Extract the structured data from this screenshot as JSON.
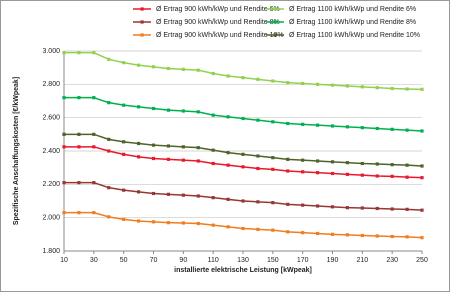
{
  "chart_data": {
    "type": "line",
    "x_label": "installierte elektrische Leistung [kWpeak]",
    "y_label": "Spezifische Anschaffungskosten [€/kWpeak]",
    "x": [
      10,
      20,
      30,
      40,
      50,
      60,
      70,
      80,
      90,
      100,
      110,
      120,
      130,
      140,
      150,
      160,
      170,
      180,
      190,
      200,
      210,
      220,
      230,
      240,
      250
    ],
    "xlim": [
      10,
      250
    ],
    "xticks": [
      10,
      30,
      50,
      70,
      90,
      110,
      130,
      150,
      170,
      190,
      210,
      230,
      250
    ],
    "ylim": [
      1800,
      3000
    ],
    "yticks": [
      {
        "value": 1800,
        "label": "1.800"
      },
      {
        "value": 2000,
        "label": "2.000"
      },
      {
        "value": 2200,
        "label": "2.200"
      },
      {
        "value": 2400,
        "label": "2.400"
      },
      {
        "value": 2600,
        "label": "2.600"
      },
      {
        "value": 2800,
        "label": "2.800"
      },
      {
        "value": 3000,
        "label": "3.000"
      }
    ],
    "grid": true,
    "series": [
      {
        "name": "Ø Ertrag  900 kWh/kWp und Rendite 6%",
        "color": "#e8192c",
        "values": [
          2425,
          2425,
          2425,
          2400,
          2380,
          2365,
          2355,
          2350,
          2345,
          2340,
          2325,
          2315,
          2305,
          2295,
          2290,
          2280,
          2275,
          2270,
          2265,
          2260,
          2255,
          2250,
          2248,
          2243,
          2240
        ]
      },
      {
        "name": "Ø Ertrag  900 kWh/kWp und Rendite 8%",
        "color": "#953735",
        "values": [
          2210,
          2210,
          2210,
          2180,
          2165,
          2155,
          2145,
          2140,
          2135,
          2130,
          2120,
          2110,
          2100,
          2095,
          2090,
          2080,
          2075,
          2070,
          2065,
          2060,
          2058,
          2055,
          2052,
          2050,
          2045
        ]
      },
      {
        "name": "Ø Ertrag  900 kWh/kWp und Rendite 10%",
        "color": "#f07d1e",
        "values": [
          2030,
          2030,
          2030,
          2005,
          1990,
          1980,
          1975,
          1970,
          1968,
          1965,
          1955,
          1945,
          1935,
          1930,
          1925,
          1915,
          1910,
          1905,
          1900,
          1897,
          1893,
          1890,
          1887,
          1885,
          1880
        ]
      },
      {
        "name": "Ø Ertrag  1100 kWh/kWp und Rendite 6%",
        "color": "#92d050",
        "values": [
          2990,
          2990,
          2990,
          2950,
          2930,
          2915,
          2905,
          2895,
          2890,
          2885,
          2865,
          2850,
          2840,
          2830,
          2820,
          2810,
          2805,
          2800,
          2795,
          2790,
          2785,
          2780,
          2775,
          2772,
          2770
        ]
      },
      {
        "name": "Ø Ertrag  1100 kWh/kWp und Rendite 8%",
        "color": "#00b050",
        "values": [
          2720,
          2720,
          2720,
          2690,
          2675,
          2665,
          2655,
          2645,
          2640,
          2635,
          2615,
          2605,
          2595,
          2585,
          2575,
          2565,
          2560,
          2555,
          2550,
          2545,
          2540,
          2535,
          2530,
          2525,
          2520
        ]
      },
      {
        "name": "Ø Ertrag  1100 kWh/kWp und Rendite 10%",
        "color": "#4f6228",
        "values": [
          2500,
          2500,
          2500,
          2470,
          2455,
          2445,
          2435,
          2430,
          2425,
          2420,
          2405,
          2390,
          2380,
          2370,
          2360,
          2350,
          2345,
          2340,
          2335,
          2330,
          2325,
          2322,
          2318,
          2315,
          2310
        ]
      }
    ]
  }
}
